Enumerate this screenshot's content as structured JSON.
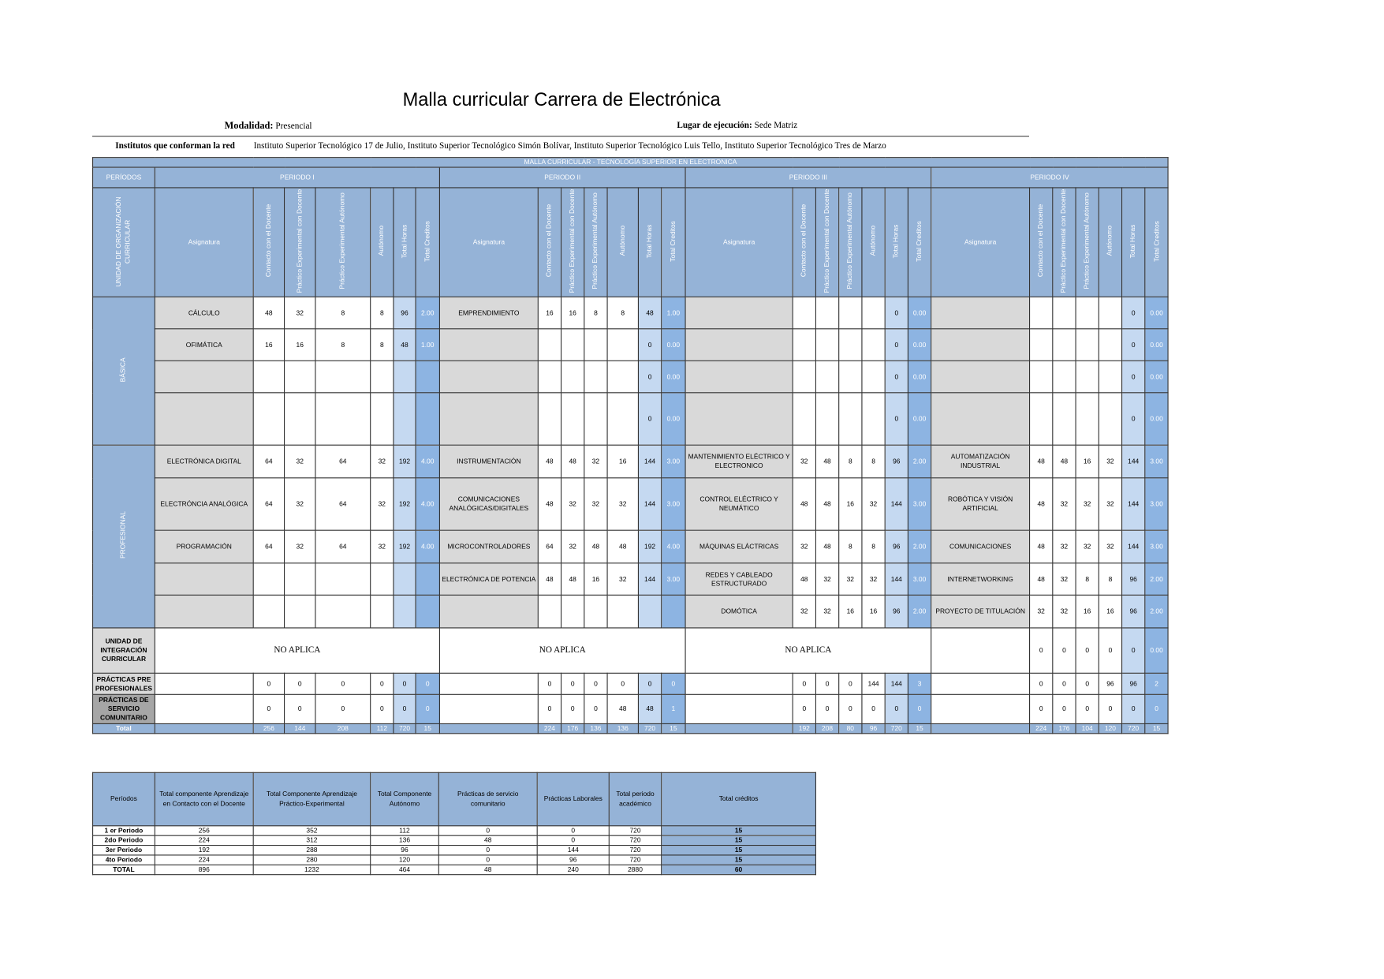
{
  "header": {
    "title": "Malla curricular Carrera de Electrónica",
    "modalidad": {
      "label": "Modalidad:",
      "value": "Presencial"
    },
    "lugar": {
      "label": "Lugar de ejecución:",
      "value": "Sede Matriz"
    },
    "institutos": {
      "label": "Institutos que conforman la red",
      "value": "Instituto Superior Tecnológico 17 de Julio, Instituto Superior Tecnológico Simón Bolívar, Instituto Superior Tecnológico Luis Tello, Instituto Superior Tecnológico Tres de Marzo"
    }
  },
  "malla": {
    "banner": "MALLA CURRICULAR - TECNOLOGÍA SUPERIOR EN ELECTRONICA",
    "periodos_label": "PERÍODOS",
    "unidad_label": "UNIDAD DE ORGANIZACIÓN CURRICULAR",
    "periods": [
      "PERIODO I",
      "PERIODO II",
      "PERIODO III",
      "PERIODO IV"
    ],
    "column_headers": [
      "Asignatura",
      "Contacto  con el Docente",
      "Práctico Experimental con Docente",
      "Práctico Experimental Autónomo",
      "Autónomo",
      "Total Horas",
      "Total Creditos"
    ],
    "units": [
      {
        "name": "BÁSICA",
        "rows": [
          [
            [
              "CÁLCULO",
              "48",
              "32",
              "8",
              "8",
              "96",
              "2.00"
            ],
            [
              "EMPRENDIMIENTO",
              "16",
              "16",
              "8",
              "8",
              "48",
              "1.00"
            ],
            [
              null,
              null,
              null,
              null,
              null,
              "0",
              "0.00"
            ],
            [
              null,
              null,
              null,
              null,
              null,
              "0",
              "0.00"
            ]
          ],
          [
            [
              "OFIMÁTICA",
              "16",
              "16",
              "8",
              "8",
              "48",
              "1.00"
            ],
            [
              null,
              null,
              null,
              null,
              null,
              "0",
              "0.00"
            ],
            [
              null,
              null,
              null,
              null,
              null,
              "0",
              "0.00"
            ],
            [
              null,
              null,
              null,
              null,
              null,
              "0",
              "0.00"
            ]
          ],
          [
            [
              null,
              null,
              null,
              null,
              null,
              null,
              null
            ],
            [
              null,
              null,
              null,
              null,
              null,
              "0",
              "0.00"
            ],
            [
              null,
              null,
              null,
              null,
              null,
              "0",
              "0.00"
            ],
            [
              null,
              null,
              null,
              null,
              null,
              "0",
              "0.00"
            ]
          ],
          [
            [
              null,
              null,
              null,
              null,
              null,
              null,
              null
            ],
            [
              null,
              null,
              null,
              null,
              null,
              "0",
              "0.00"
            ],
            [
              null,
              null,
              null,
              null,
              null,
              "0",
              "0.00"
            ],
            [
              null,
              null,
              null,
              null,
              null,
              "0",
              "0.00"
            ]
          ]
        ]
      },
      {
        "name": "PROFESIONAL",
        "rows": [
          [
            [
              "ELECTRÓNICA DIGITAL",
              "64",
              "32",
              "64",
              "32",
              "192",
              "4.00"
            ],
            [
              "INSTRUMENTACIÓN",
              "48",
              "48",
              "32",
              "16",
              "144",
              "3.00"
            ],
            [
              "MANTENIMIENTO  ELÉCTRICO Y ELECTRONICO",
              "32",
              "48",
              "8",
              "8",
              "96",
              "2.00"
            ],
            [
              "AUTOMATIZACIÓN INDUSTRIAL",
              "48",
              "48",
              "16",
              "32",
              "144",
              "3.00"
            ]
          ],
          [
            [
              "ELECTRÓNCIA ANALÓGICA",
              "64",
              "32",
              "64",
              "32",
              "192",
              "4.00"
            ],
            [
              "COMUNICACIONES ANALÓGICAS/DIGITALES",
              "48",
              "32",
              "32",
              "32",
              "144",
              "3.00"
            ],
            [
              "CONTROL ELÉCTRICO Y NEUMÁTICO",
              "48",
              "48",
              "16",
              "32",
              "144",
              "3.00"
            ],
            [
              "ROBÓTICA Y VISIÓN ARTIFICIAL",
              "48",
              "32",
              "32",
              "32",
              "144",
              "3.00"
            ]
          ],
          [
            [
              "PROGRAMACIÓN",
              "64",
              "32",
              "64",
              "32",
              "192",
              "4.00"
            ],
            [
              "MICROCONTROLADORES",
              "64",
              "32",
              "48",
              "48",
              "192",
              "4.00"
            ],
            [
              "MÁQUINAS ELÁCTRICAS",
              "32",
              "48",
              "8",
              "8",
              "96",
              "2.00"
            ],
            [
              "COMUNICACIONES",
              "48",
              "32",
              "32",
              "32",
              "144",
              "3.00"
            ]
          ],
          [
            [
              null,
              null,
              null,
              null,
              null,
              null,
              null
            ],
            [
              "ELECTRÓNICA DE POTENCIA",
              "48",
              "48",
              "16",
              "32",
              "144",
              "3.00"
            ],
            [
              "REDES Y CABLEADO ESTRUCTURADO",
              "48",
              "32",
              "32",
              "32",
              "144",
              "3.00"
            ],
            [
              "INTERNETWORKING",
              "48",
              "32",
              "8",
              "8",
              "96",
              "2.00"
            ]
          ],
          [
            [
              null,
              null,
              null,
              null,
              null,
              null,
              null
            ],
            [
              null,
              null,
              null,
              null,
              null,
              null,
              null
            ],
            [
              "DOMÓTICA",
              "32",
              "32",
              "16",
              "16",
              "96",
              "2.00"
            ],
            [
              "PROYECTO DE TITULACIÓN",
              "32",
              "32",
              "16",
              "16",
              "96",
              "2.00"
            ]
          ]
        ]
      }
    ],
    "special_rows": [
      {
        "name": "UNIDAD DE INTEGRACIÓN CURRICULAR",
        "periods": [
          {
            "note": "NO APLICA"
          },
          {
            "note": "NO APLICA"
          },
          {
            "note": "NO APLICA"
          },
          {
            "cells": [
              null,
              "0",
              "0",
              "0",
              "0",
              "0",
              "0.00"
            ]
          }
        ]
      },
      {
        "name": "PRÁCTICAS PRE PROFESIONALES",
        "periods": [
          {
            "cells": [
              null,
              "0",
              "0",
              "0",
              "0",
              "0",
              "0"
            ]
          },
          {
            "cells": [
              null,
              "0",
              "0",
              "0",
              "0",
              "0",
              "0"
            ]
          },
          {
            "cells": [
              null,
              "0",
              "0",
              "0",
              "144",
              "144",
              "3"
            ]
          },
          {
            "cells": [
              null,
              "0",
              "0",
              "0",
              "96",
              "96",
              "2"
            ]
          }
        ]
      },
      {
        "name": "PRÁCTICAS DE SERVICIO COMUNITARIO",
        "periods": [
          {
            "cells": [
              null,
              "0",
              "0",
              "0",
              "0",
              "0",
              "0"
            ]
          },
          {
            "cells": [
              null,
              "0",
              "0",
              "0",
              "48",
              "48",
              "1"
            ]
          },
          {
            "cells": [
              null,
              "0",
              "0",
              "0",
              "0",
              "0",
              "0"
            ]
          },
          {
            "cells": [
              null,
              "0",
              "0",
              "0",
              "0",
              "0",
              "0"
            ]
          }
        ]
      },
      {
        "name": "Total",
        "periods": [
          {
            "cells": [
              null,
              "256",
              "144",
              "208",
              "112",
              "720",
              "15"
            ]
          },
          {
            "cells": [
              null,
              "224",
              "176",
              "136",
              "136",
              "720",
              "15"
            ]
          },
          {
            "cells": [
              null,
              "192",
              "208",
              "80",
              "96",
              "720",
              "15"
            ]
          },
          {
            "cells": [
              null,
              "224",
              "176",
              "104",
              "120",
              "720",
              "15"
            ]
          }
        ]
      }
    ]
  },
  "summary": {
    "headers": [
      "Períodos",
      "Total componente Aprendizaje en Contacto con el Docente",
      "Total Componente Aprendizaje Práctico-Experimental",
      "Total Componente Autónomo",
      "Prácticas de servicio comunitario",
      "Prácticas Laborales",
      "Total periodo académico",
      "Total créditos"
    ],
    "rows": [
      [
        "1 er Periodo",
        "256",
        "352",
        "112",
        "0",
        "0",
        "720",
        "15"
      ],
      [
        "2do Periodo",
        "224",
        "312",
        "136",
        "48",
        "0",
        "720",
        "15"
      ],
      [
        "3er Periodo",
        "192",
        "288",
        "96",
        "0",
        "144",
        "720",
        "15"
      ],
      [
        "4to Periodo",
        "224",
        "280",
        "120",
        "0",
        "96",
        "720",
        "15"
      ],
      [
        "TOTAL",
        "896",
        "1232",
        "464",
        "48",
        "240",
        "2880",
        "60"
      ]
    ]
  }
}
